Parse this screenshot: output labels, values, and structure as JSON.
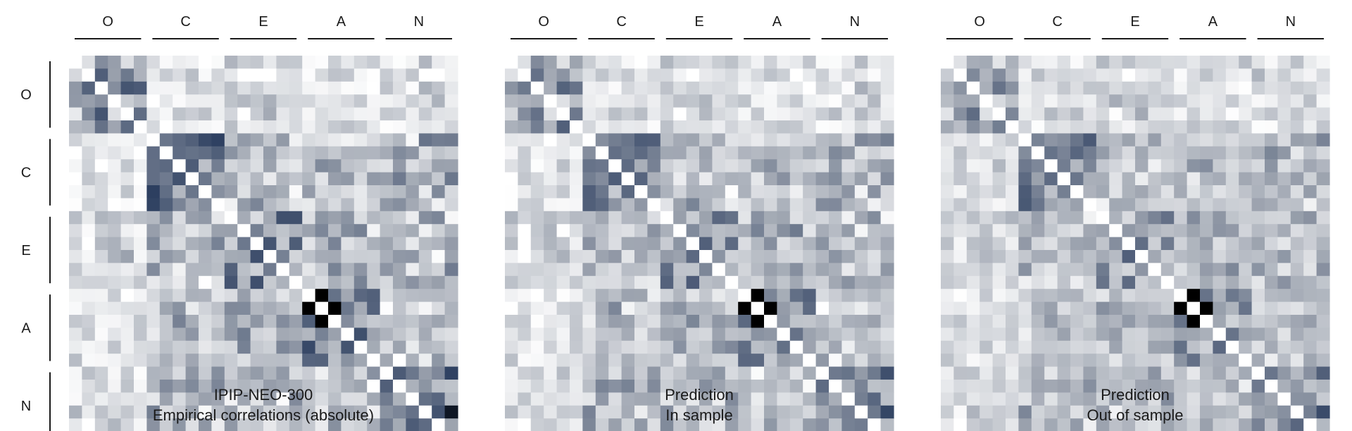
{
  "figure": {
    "factor_labels": [
      "O",
      "C",
      "E",
      "A",
      "N"
    ],
    "panels": [
      {
        "id": "empirical",
        "title_line1": "IPIP-NEO-300",
        "title_line2": "Empirical correlations (absolute)",
        "show_row_labels": true,
        "noise_level": "high"
      },
      {
        "id": "in-sample",
        "title_line1": "Prediction",
        "title_line2": "In sample",
        "show_row_labels": false,
        "noise_level": "medium"
      },
      {
        "id": "out-of-sample",
        "title_line1": "Prediction",
        "title_line2": "Out of sample",
        "show_row_labels": false,
        "noise_level": "low"
      }
    ]
  },
  "chart_data": {
    "type": "heatmap",
    "grid_size": [
      30,
      30
    ],
    "blocks": [
      "O",
      "C",
      "E",
      "A",
      "N"
    ],
    "block_size": 6,
    "value_scale": "absolute correlation, 0 (white) to 1 (black)",
    "colors": {
      "low": "#ffffff",
      "mid": "#9aa1ad",
      "high": "#24375a",
      "peak": "#000000"
    },
    "block_mean_abs_corr": {
      "O": {
        "O": 0.42,
        "C": 0.1,
        "E": 0.18,
        "A": 0.12,
        "N": 0.14
      },
      "C": {
        "O": 0.1,
        "C": 0.55,
        "E": 0.28,
        "A": 0.3,
        "N": 0.33
      },
      "E": {
        "O": 0.18,
        "C": 0.28,
        "E": 0.5,
        "A": 0.35,
        "N": 0.3
      },
      "A": {
        "O": 0.12,
        "C": 0.3,
        "E": 0.35,
        "A": 0.5,
        "N": 0.25
      },
      "N": {
        "O": 0.14,
        "C": 0.33,
        "E": 0.3,
        "A": 0.25,
        "N": 0.62
      }
    },
    "peak_cells": [
      [
        18,
        18
      ],
      [
        18,
        19
      ],
      [
        19,
        19
      ],
      [
        19,
        20
      ]
    ]
  }
}
